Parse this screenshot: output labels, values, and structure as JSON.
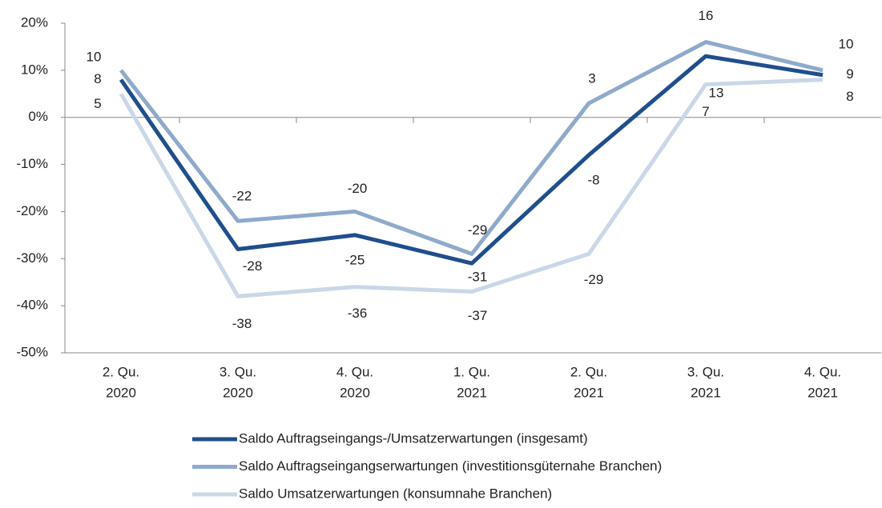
{
  "chart_data": {
    "type": "line",
    "categories": [
      [
        "2. Qu.",
        "2020"
      ],
      [
        "3. Qu.",
        "2020"
      ],
      [
        "4. Qu.",
        "2020"
      ],
      [
        "1. Qu.",
        "2021"
      ],
      [
        "2. Qu.",
        "2021"
      ],
      [
        "3. Qu.",
        "2021"
      ],
      [
        "4. Qu.",
        "2021"
      ]
    ],
    "series": [
      {
        "name": "Saldo Auftragseingangs-/Umsatzerwartungen (insgesamt)",
        "color": "#1f4e8c",
        "values": [
          8,
          -28,
          -25,
          -31,
          -8,
          13,
          9
        ]
      },
      {
        "name": "Saldo Auftragseingangserwartungen (investitionsgüternahe Branchen)",
        "color": "#8eaacb",
        "values": [
          10,
          -22,
          -20,
          -29,
          3,
          16,
          10
        ]
      },
      {
        "name": "Saldo Umsatzerwartungen (konsumnahe Branchen)",
        "color": "#c9d7e8",
        "values": [
          5,
          -38,
          -36,
          -37,
          -29,
          7,
          8
        ]
      }
    ],
    "ylim": [
      -50,
      20
    ],
    "yticks": [
      {
        "value": -50,
        "label": "-50%"
      },
      {
        "value": -40,
        "label": "-40%"
      },
      {
        "value": -30,
        "label": "-30%"
      },
      {
        "value": -20,
        "label": "-20%"
      },
      {
        "value": -10,
        "label": "-10%"
      },
      {
        "value": 0,
        "label": "0%"
      },
      {
        "value": 10,
        "label": "10%"
      },
      {
        "value": 20,
        "label": "20%"
      }
    ],
    "legend": "bottom"
  }
}
